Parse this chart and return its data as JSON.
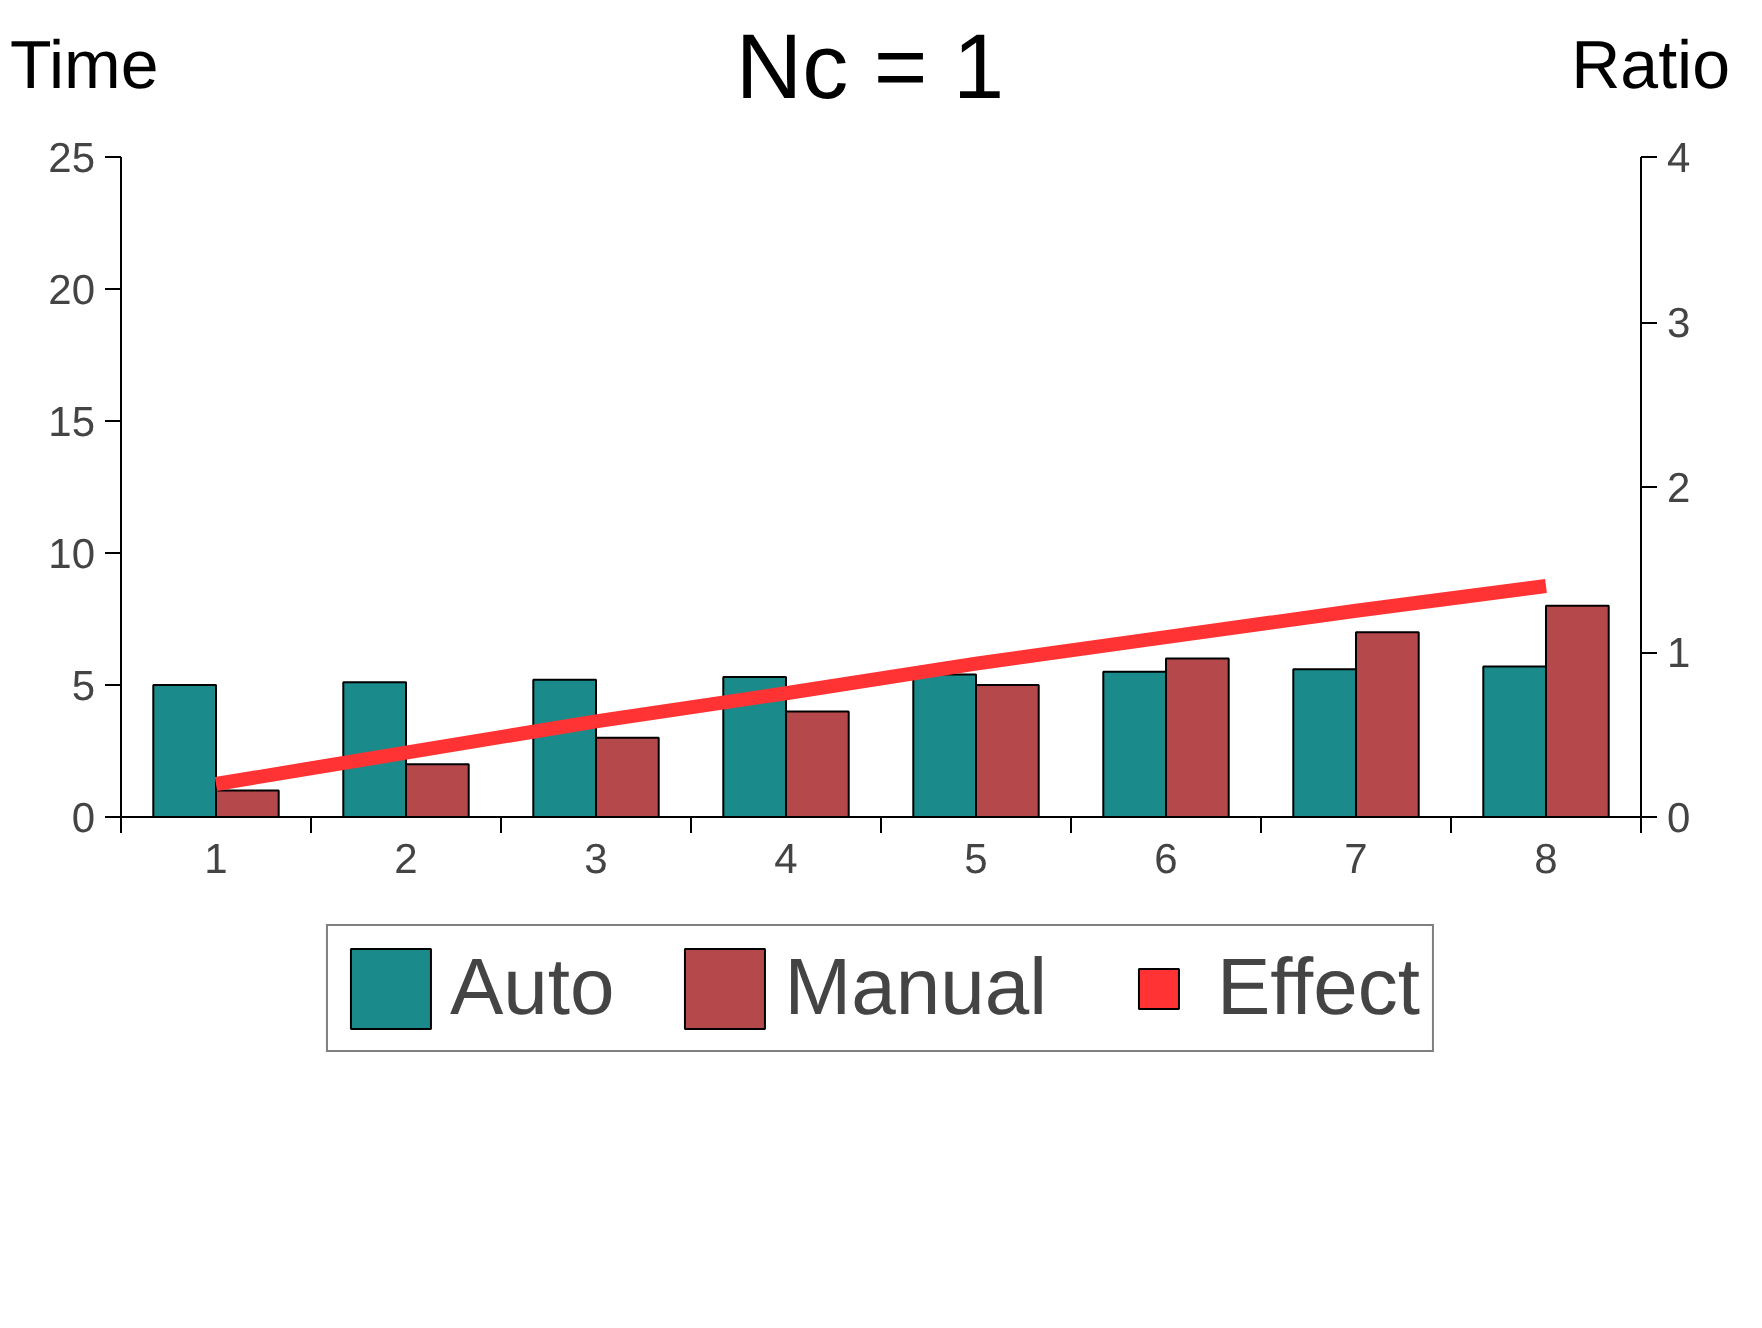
{
  "chart_data": {
    "type": "bar",
    "title": "Nc = 1",
    "ylabel": "Time",
    "y2label": "Ratio",
    "categories": [
      "1",
      "2",
      "3",
      "4",
      "5",
      "6",
      "7",
      "8"
    ],
    "series": [
      {
        "name": "Auto",
        "color": "#1a8a8a",
        "values": [
          5,
          5.1,
          5.2,
          5.3,
          5.4,
          5.5,
          5.6,
          5.7
        ]
      },
      {
        "name": "Manual",
        "color": "#b5484a",
        "values": [
          1,
          2,
          3,
          4,
          5,
          6,
          7,
          8
        ]
      },
      {
        "name": "Effect",
        "type": "line",
        "axis": "y2",
        "color": "#ff3333",
        "values": [
          0.2,
          0.39,
          0.58,
          0.75,
          0.93,
          1.09,
          1.25,
          1.4
        ]
      }
    ],
    "ylim": [
      0,
      25
    ],
    "yticks": [
      0,
      5,
      10,
      15,
      20,
      25
    ],
    "y2lim": [
      0,
      4
    ],
    "y2ticks": [
      0,
      1,
      2,
      3,
      4
    ],
    "legend": "bottom"
  }
}
